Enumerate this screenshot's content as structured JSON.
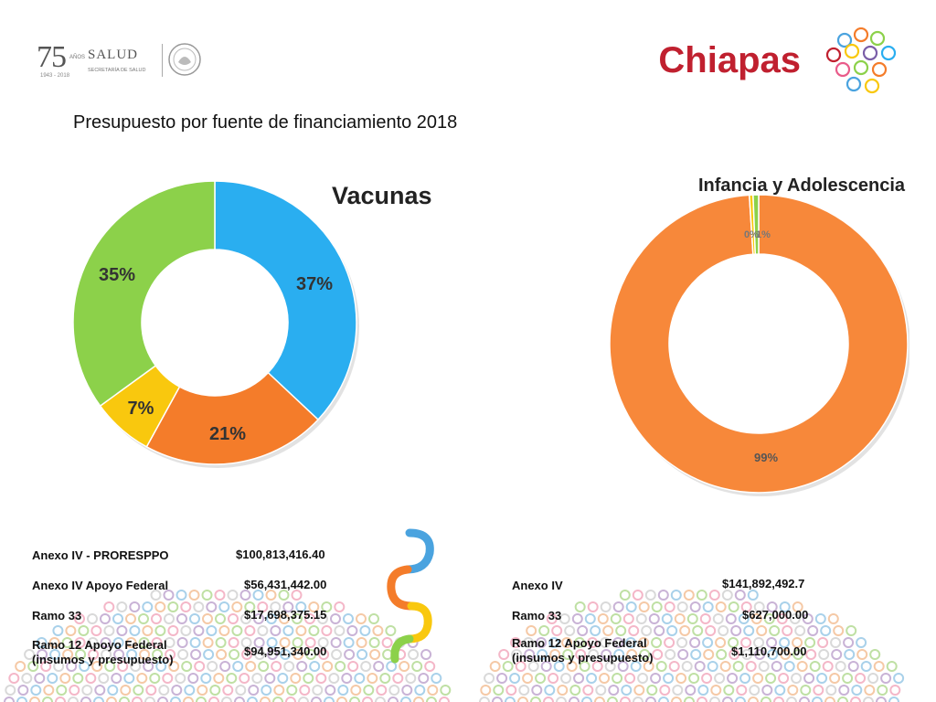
{
  "header": {
    "logo_75": "75",
    "logo_anos": "AÑOS",
    "logo_years": "1943 - 2018",
    "logo_salud": "SALUD",
    "logo_secretaria": "SECRETARÍA DE SALUD",
    "state_title": "Chiapas"
  },
  "subtitle": "Presupuesto por fuente de financiamiento 2018",
  "chart_data": [
    {
      "type": "pie",
      "title": "Vacunas",
      "donut": true,
      "categories": [
        "Anexo IV - PRORESPPO",
        "Anexo IV Apoyo Federal",
        "Ramo 33",
        "Ramo 12 Apoyo Federal (insumos y presupuesto)"
      ],
      "values": [
        37,
        21,
        7,
        35
      ],
      "labels": [
        "37%",
        "21%",
        "7%",
        "35%"
      ],
      "colors": [
        "#2aaef0",
        "#f47c2a",
        "#f9c80e",
        "#8cd14a"
      ]
    },
    {
      "type": "pie",
      "title": "Infancia y Adolescencia",
      "donut": true,
      "categories": [
        "Anexo IV",
        "Ramo 33",
        "Ramo 12 Apoyo Federal (insumos y presupuesto)"
      ],
      "values": [
        99,
        0.4,
        0.6
      ],
      "labels": [
        "99%",
        "0%",
        "1%"
      ],
      "colors": [
        "#f7883a",
        "#f9c80e",
        "#8cd14a"
      ]
    }
  ],
  "table_left": {
    "rows": [
      {
        "label": "Anexo IV - PRORESPPO",
        "amount": "$100,813,416.40"
      },
      {
        "label": "Anexo IV Apoyo Federal",
        "amount": "$56,431,442.00"
      },
      {
        "label": "Ramo 33",
        "amount": "$17,698,375.15"
      },
      {
        "label": "Ramo 12 Apoyo Federal",
        "label2": "(insumos y presupuesto)",
        "amount": "$94,951,340.00"
      }
    ]
  },
  "table_right": {
    "rows": [
      {
        "label": "Anexo IV",
        "amount": "$141,892,492.7"
      },
      {
        "label": "Ramo 33",
        "amount": "$627,000.00"
      },
      {
        "label": "Ramo 12 Apoyo Federal",
        "label2": "(insumos y presupuesto)",
        "amount": "$1,110,700.00"
      }
    ]
  }
}
